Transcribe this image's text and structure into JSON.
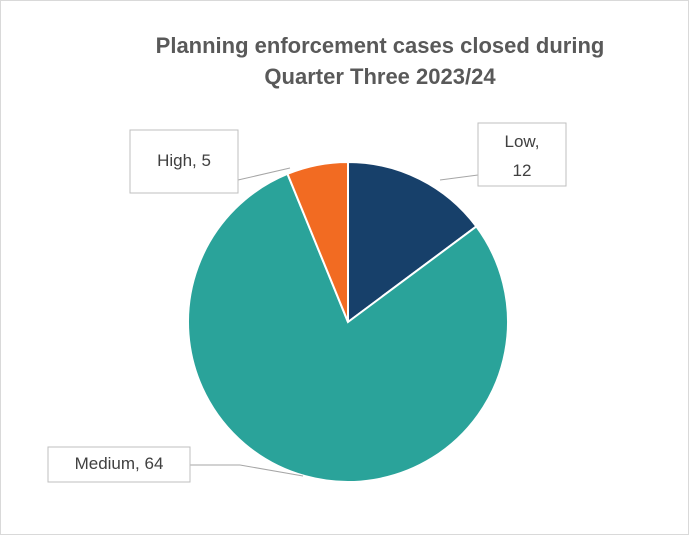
{
  "chart_data": {
    "type": "pie",
    "title": "Planning enforcement cases closed during Quarter Three 2023/24",
    "categories": [
      "Low",
      "Medium",
      "High"
    ],
    "values": [
      12,
      64,
      5
    ],
    "value_labels": [
      "Low, 12",
      "Medium, 64",
      "High, 5"
    ],
    "colors": [
      "#17406a",
      "#2aa39a",
      "#f26b22"
    ]
  }
}
